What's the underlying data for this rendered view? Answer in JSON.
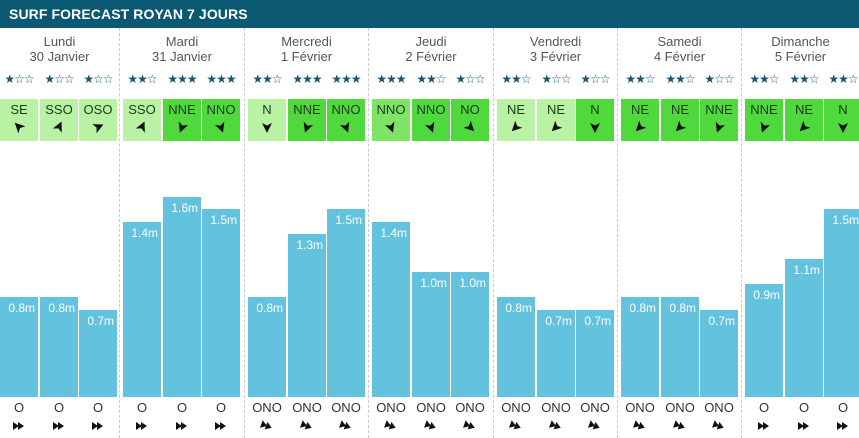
{
  "title": "SURF FORECAST ROYAN 7 JOURS",
  "colors": {
    "title_bg": "#0b5872",
    "bar": "#63c3de",
    "star": "#1a5670"
  },
  "max_wave_m": 1.6,
  "days": [
    {
      "name": "Lundi",
      "date": "30 Janvier",
      "slots": [
        {
          "stars": 1,
          "wind_dir": "SE",
          "wind_rotation": 135,
          "wind_level": 1,
          "wave": 0.8,
          "wave_label": "0.8m",
          "swell_dir": "O",
          "swell_rotation": 90
        },
        {
          "stars": 1,
          "wind_dir": "SSO",
          "wind_rotation": 205,
          "wind_level": 1,
          "wave": 0.8,
          "wave_label": "0.8m",
          "swell_dir": "O",
          "swell_rotation": 90
        },
        {
          "stars": 1,
          "wind_dir": "OSO",
          "wind_rotation": 245,
          "wind_level": 1,
          "wave": 0.7,
          "wave_label": "0.7m",
          "swell_dir": "O",
          "swell_rotation": 90
        }
      ]
    },
    {
      "name": "Mardi",
      "date": "31 Janvier",
      "slots": [
        {
          "stars": 2,
          "wind_dir": "SSO",
          "wind_rotation": 205,
          "wind_level": 1,
          "wave": 1.4,
          "wave_label": "1.4m",
          "swell_dir": "O",
          "swell_rotation": 90
        },
        {
          "stars": 3,
          "wind_dir": "NNE",
          "wind_rotation": 20,
          "wind_level": 3,
          "wave": 1.6,
          "wave_label": "1.6m",
          "swell_dir": "O",
          "swell_rotation": 90
        },
        {
          "stars": 3,
          "wind_dir": "NNO",
          "wind_rotation": 340,
          "wind_level": 3,
          "wave": 1.5,
          "wave_label": "1.5m",
          "swell_dir": "O",
          "swell_rotation": 90
        }
      ]
    },
    {
      "name": "Mercredi",
      "date": "1 Février",
      "slots": [
        {
          "stars": 2,
          "wind_dir": "N",
          "wind_rotation": 0,
          "wind_level": 1,
          "wave": 0.8,
          "wave_label": "0.8m",
          "swell_dir": "ONO",
          "swell_rotation": 110
        },
        {
          "stars": 3,
          "wind_dir": "NNE",
          "wind_rotation": 20,
          "wind_level": 3,
          "wave": 1.3,
          "wave_label": "1.3m",
          "swell_dir": "ONO",
          "swell_rotation": 110
        },
        {
          "stars": 3,
          "wind_dir": "NNO",
          "wind_rotation": 340,
          "wind_level": 3,
          "wave": 1.5,
          "wave_label": "1.5m",
          "swell_dir": "ONO",
          "swell_rotation": 110
        }
      ]
    },
    {
      "name": "Jeudi",
      "date": "2 Février",
      "slots": [
        {
          "stars": 3,
          "wind_dir": "NNO",
          "wind_rotation": 340,
          "wind_level": 2,
          "wave": 1.4,
          "wave_label": "1.4m",
          "swell_dir": "ONO",
          "swell_rotation": 110
        },
        {
          "stars": 2,
          "wind_dir": "NNO",
          "wind_rotation": 340,
          "wind_level": 3,
          "wave": 1.0,
          "wave_label": "1.0m",
          "swell_dir": "ONO",
          "swell_rotation": 110
        },
        {
          "stars": 1,
          "wind_dir": "NO",
          "wind_rotation": 315,
          "wind_level": 3,
          "wave": 1.0,
          "wave_label": "1.0m",
          "swell_dir": "ONO",
          "swell_rotation": 110
        }
      ]
    },
    {
      "name": "Vendredi",
      "date": "3 Février",
      "slots": [
        {
          "stars": 2,
          "wind_dir": "NE",
          "wind_rotation": 45,
          "wind_level": 1,
          "wave": 0.8,
          "wave_label": "0.8m",
          "swell_dir": "ONO",
          "swell_rotation": 110
        },
        {
          "stars": 1,
          "wind_dir": "NE",
          "wind_rotation": 45,
          "wind_level": 1,
          "wave": 0.7,
          "wave_label": "0.7m",
          "swell_dir": "ONO",
          "swell_rotation": 110
        },
        {
          "stars": 1,
          "wind_dir": "N",
          "wind_rotation": 0,
          "wind_level": 3,
          "wave": 0.7,
          "wave_label": "0.7m",
          "swell_dir": "ONO",
          "swell_rotation": 110
        }
      ]
    },
    {
      "name": "Samedi",
      "date": "4 Février",
      "slots": [
        {
          "stars": 2,
          "wind_dir": "NE",
          "wind_rotation": 45,
          "wind_level": 3,
          "wave": 0.8,
          "wave_label": "0.8m",
          "swell_dir": "ONO",
          "swell_rotation": 110
        },
        {
          "stars": 2,
          "wind_dir": "NE",
          "wind_rotation": 45,
          "wind_level": 3,
          "wave": 0.8,
          "wave_label": "0.8m",
          "swell_dir": "ONO",
          "swell_rotation": 110
        },
        {
          "stars": 1,
          "wind_dir": "NNE",
          "wind_rotation": 20,
          "wind_level": 3,
          "wave": 0.7,
          "wave_label": "0.7m",
          "swell_dir": "ONO",
          "swell_rotation": 110
        }
      ]
    },
    {
      "name": "Dimanche",
      "date": "5 Février",
      "slots": [
        {
          "stars": 2,
          "wind_dir": "NNE",
          "wind_rotation": 20,
          "wind_level": 3,
          "wave": 0.9,
          "wave_label": "0.9m",
          "swell_dir": "O",
          "swell_rotation": 90
        },
        {
          "stars": 2,
          "wind_dir": "NE",
          "wind_rotation": 45,
          "wind_level": 3,
          "wave": 1.1,
          "wave_label": "1.1m",
          "swell_dir": "O",
          "swell_rotation": 90
        },
        {
          "stars": 2,
          "wind_dir": "N",
          "wind_rotation": 0,
          "wind_level": 3,
          "wave": 1.5,
          "wave_label": "1.5m",
          "swell_dir": "O",
          "swell_rotation": 90
        }
      ]
    }
  ]
}
